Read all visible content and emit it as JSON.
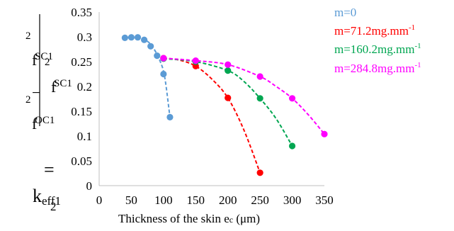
{
  "chart_data": {
    "type": "scatter",
    "title": "",
    "xlabel": {
      "main": "Thickness of the skin e",
      "sub": "c",
      "unit": " (μm)"
    },
    "ylabel": {
      "k": "k",
      "k_sub": "eff1",
      "k_sup": "2",
      "eq": " = ",
      "num_a": "f",
      "num_a_sub": "OC1",
      "num_a_sup": "2",
      "minus": " − ",
      "num_b": "f",
      "num_b_sub": "SC1",
      "num_b_sup": "2",
      "den": "f",
      "den_sub": "SC1",
      "den_sup": "2"
    },
    "xlim": [
      0,
      350
    ],
    "ylim": [
      0,
      0.35
    ],
    "x_ticks": [
      0,
      50,
      100,
      150,
      200,
      250,
      300,
      350
    ],
    "y_ticks": [
      "0",
      "0.05",
      "0.1",
      "0.15",
      "0.2",
      "0.25",
      "0.3",
      "0.35"
    ],
    "grid": false,
    "legend_position": "right",
    "series": [
      {
        "name": "m=0",
        "name_sup": "",
        "color": "#5b9bd5",
        "points": [
          [
            40,
            0.298
          ],
          [
            50,
            0.299
          ],
          [
            60,
            0.299
          ],
          [
            70,
            0.294
          ],
          [
            80,
            0.281
          ],
          [
            90,
            0.262
          ],
          [
            100,
            0.225
          ],
          [
            110,
            0.138
          ]
        ],
        "fit": [
          [
            40,
            0.299
          ],
          [
            60,
            0.298
          ],
          [
            75,
            0.291
          ],
          [
            85,
            0.276
          ],
          [
            95,
            0.25
          ],
          [
            102,
            0.218
          ],
          [
            110,
            0.138
          ]
        ]
      },
      {
        "name": "m=71.2mg.mm",
        "name_sup": "-1",
        "color": "#ff0000",
        "points": [
          [
            100,
            0.257
          ],
          [
            150,
            0.241
          ],
          [
            200,
            0.177
          ],
          [
            250,
            0.026
          ]
        ],
        "fit": [
          [
            100,
            0.257
          ],
          [
            125,
            0.253
          ],
          [
            150,
            0.241
          ],
          [
            175,
            0.215
          ],
          [
            200,
            0.177
          ],
          [
            225,
            0.112
          ],
          [
            250,
            0.026
          ]
        ]
      },
      {
        "name": "m=160.2mg.mm",
        "name_sup": "-1",
        "color": "#00a651",
        "points": [
          [
            100,
            0.256
          ],
          [
            150,
            0.25
          ],
          [
            200,
            0.232
          ],
          [
            250,
            0.176
          ],
          [
            300,
            0.08
          ]
        ],
        "fit": [
          [
            100,
            0.256
          ],
          [
            150,
            0.25
          ],
          [
            200,
            0.232
          ],
          [
            225,
            0.21
          ],
          [
            250,
            0.176
          ],
          [
            275,
            0.135
          ],
          [
            300,
            0.08
          ]
        ]
      },
      {
        "name": "m=284.8mg.mm",
        "name_sup": "-1",
        "color": "#ff00ff",
        "points": [
          [
            100,
            0.257
          ],
          [
            150,
            0.252
          ],
          [
            200,
            0.244
          ],
          [
            250,
            0.22
          ],
          [
            300,
            0.176
          ],
          [
            350,
            0.104
          ]
        ],
        "fit": [
          [
            100,
            0.257
          ],
          [
            150,
            0.252
          ],
          [
            200,
            0.244
          ],
          [
            250,
            0.22
          ],
          [
            275,
            0.2
          ],
          [
            300,
            0.176
          ],
          [
            325,
            0.143
          ],
          [
            350,
            0.104
          ]
        ]
      }
    ]
  }
}
